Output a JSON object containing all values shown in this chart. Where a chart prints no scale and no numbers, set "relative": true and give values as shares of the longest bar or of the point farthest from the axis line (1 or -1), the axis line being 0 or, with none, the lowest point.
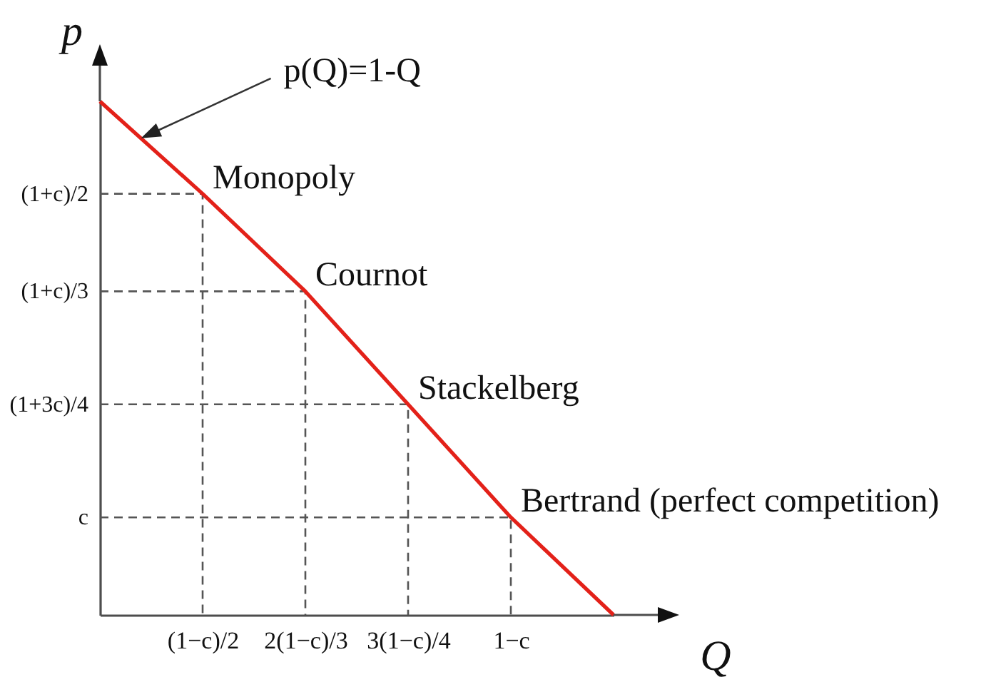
{
  "chart_data": {
    "type": "line",
    "relative": true,
    "xlabel": "Q",
    "ylabel": "p",
    "categories": [
      null,
      "(1−c)/2",
      "2(1−c)/3",
      "3(1−c)/4",
      "1−c",
      null
    ],
    "series": [
      {
        "type": "step",
        "name": "(1+c)/2",
        "color": "#555555",
        "line_style": "dashed",
        "values": [
          0.82,
          0,
          null,
          null,
          null,
          null
        ]
      },
      {
        "type": "step",
        "name": "(1+c)/3",
        "color": "#555555",
        "line_style": "dashed",
        "values": [
          0.63,
          0.63,
          0,
          null,
          null,
          null
        ]
      },
      {
        "type": "step",
        "name": "(1+3c)/4",
        "color": "#555555",
        "line_style": "dashed",
        "values": [
          0.41,
          0.41,
          0.41,
          0,
          null,
          null
        ]
      },
      {
        "type": "step",
        "name": "c",
        "color": "#555555",
        "line_style": "dashed",
        "values": [
          0.19,
          0.19,
          0.19,
          0.19,
          0,
          null
        ]
      },
      {
        "color": "#e32119",
        "values": [
          1,
          0.82,
          0.63,
          0.41,
          0.19,
          0
        ]
      }
    ],
    "annotations": [
      "p(Q)=1-Q",
      {
        "text": "Monopoly",
        "x": "(1−c)/2",
        "y": 0.82
      },
      {
        "text": "Cournot",
        "x": "2(1−c)/3",
        "y": 0.63
      },
      {
        "text": "Stackelberg",
        "x": "3(1−c)/4",
        "y": 0.41
      },
      {
        "text": "Bertrand (perfect competition)",
        "x": "1−c",
        "y": 0.19
      }
    ]
  }
}
